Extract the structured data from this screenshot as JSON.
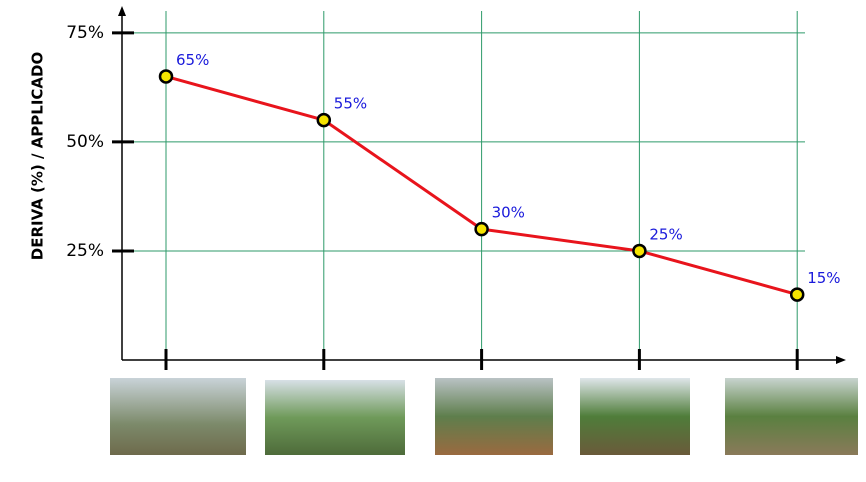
{
  "chart_data": {
    "type": "line",
    "y_label": "DERIVA (%) / APPLICADO",
    "categories": [
      null,
      null,
      null,
      null,
      null
    ],
    "series": [
      {
        "color": "#e8141c",
        "values": [
          65,
          55,
          30,
          25,
          15
        ],
        "value_labels": [
          "65%",
          "55%",
          "30%",
          "25%",
          "15%"
        ]
      }
    ],
    "ylim": [
      0,
      80
    ],
    "yticks": [
      {
        "value": 25,
        "label": "25%"
      },
      {
        "value": 50,
        "label": "50%"
      },
      {
        "value": 75,
        "label": "75%"
      }
    ],
    "grid": true
  }
}
